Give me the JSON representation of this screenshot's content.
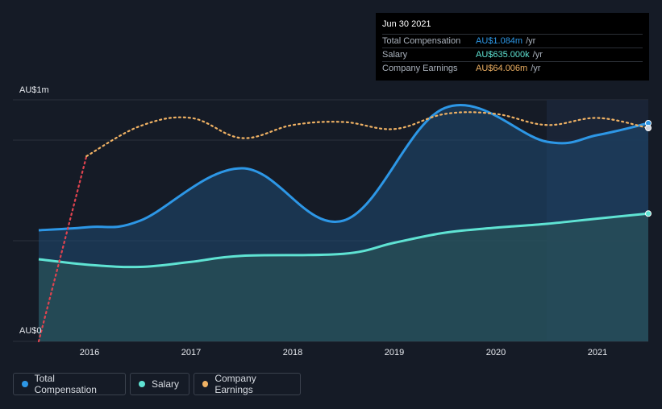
{
  "tooltip": {
    "date": "Jun 30 2021",
    "rows": [
      {
        "label": "Total Compensation",
        "value": "AU$1.084m",
        "unit": "/yr",
        "color": "#2d97e6"
      },
      {
        "label": "Salary",
        "value": "AU$635.000k",
        "unit": "/yr",
        "color": "#5fe3d3"
      },
      {
        "label": "Company Earnings",
        "value": "AU$64.006m",
        "unit": "/yr",
        "color": "#f0b264"
      }
    ]
  },
  "legend": [
    {
      "label": "Total Compensation",
      "color": "#2d97e6"
    },
    {
      "label": "Salary",
      "color": "#5fe3d3"
    },
    {
      "label": "Company Earnings",
      "color": "#f0b264"
    }
  ],
  "chart_data": {
    "type": "area",
    "ylabel_top": "AU$1m",
    "ylabel_bottom": "AU$0",
    "ylim": [
      0,
      1200000
    ],
    "xlim": [
      2015.5,
      2021.5
    ],
    "x_ticks": [
      "2016",
      "2017",
      "2018",
      "2019",
      "2020",
      "2021"
    ],
    "series": [
      {
        "name": "Total Compensation",
        "color": "#2d97e6",
        "x": [
          2015.5,
          2016.0,
          2016.5,
          2017.5,
          2018.5,
          2019.5,
          2020.5,
          2021.0,
          2021.5
        ],
        "values": [
          552000,
          568000,
          600000,
          860000,
          600000,
          1160000,
          992000,
          1025000,
          1084000
        ]
      },
      {
        "name": "Salary",
        "color": "#5fe3d3",
        "x": [
          2015.5,
          2016.0,
          2016.5,
          2017.0,
          2017.5,
          2018.5,
          2019.0,
          2019.5,
          2020.0,
          2020.5,
          2021.0,
          2021.5
        ],
        "values": [
          408000,
          380000,
          370000,
          395000,
          425000,
          435000,
          490000,
          540000,
          565000,
          584000,
          610000,
          635000
        ]
      },
      {
        "name": "Company Earnings",
        "color": "#f0b264",
        "x": [
          2015.5,
          2015.97,
          2016.5,
          2017.0,
          2017.5,
          2018.0,
          2018.5,
          2019.0,
          2019.5,
          2020.0,
          2020.5,
          2021.0,
          2021.5
        ],
        "values": [
          0,
          920000,
          1070000,
          1110000,
          1010000,
          1075000,
          1090000,
          1055000,
          1130000,
          1130000,
          1075000,
          1110000,
          1060000
        ],
        "negative_color": "#e0434f",
        "negative_until_x": 2015.97
      }
    ],
    "highlight_x_start": 2020.5,
    "grid": true
  }
}
